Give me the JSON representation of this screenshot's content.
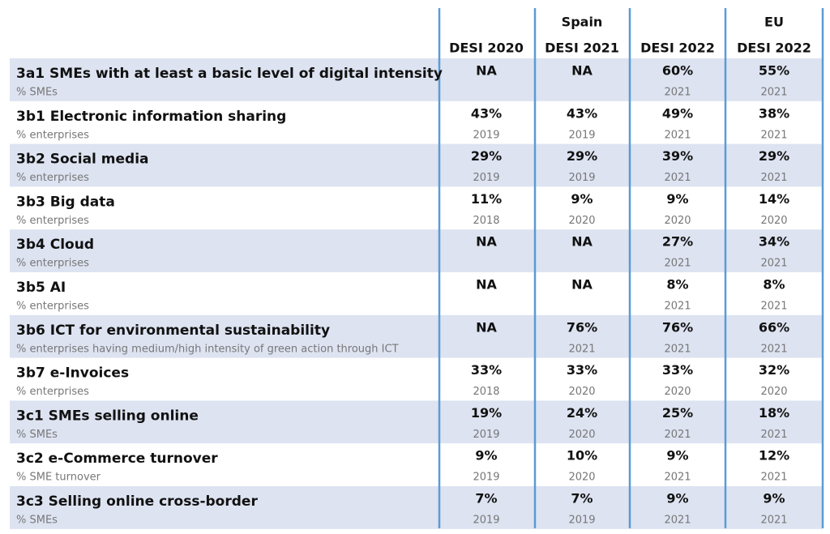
{
  "header": {
    "group_spain": "Spain",
    "group_eu": "EU",
    "columns": [
      "DESI 2020",
      "DESI 2021",
      "DESI 2022",
      "DESI 2022"
    ]
  },
  "rows": [
    {
      "label": "3a1 SMEs with at least a basic level of digital intensity",
      "unit": "% SMEs",
      "cells": [
        {
          "value": "NA",
          "year": null
        },
        {
          "value": "NA",
          "year": null
        },
        {
          "value": "60%",
          "year": "2021"
        },
        {
          "value": "55%",
          "year": "2021"
        }
      ]
    },
    {
      "label": "3b1 Electronic information sharing",
      "unit": "% enterprises",
      "cells": [
        {
          "value": "43%",
          "year": "2019"
        },
        {
          "value": "43%",
          "year": "2019"
        },
        {
          "value": "49%",
          "year": "2021"
        },
        {
          "value": "38%",
          "year": "2021"
        }
      ]
    },
    {
      "label": "3b2 Social media",
      "unit": "% enterprises",
      "cells": [
        {
          "value": "29%",
          "year": "2019"
        },
        {
          "value": "29%",
          "year": "2019"
        },
        {
          "value": "39%",
          "year": "2021"
        },
        {
          "value": "29%",
          "year": "2021"
        }
      ]
    },
    {
      "label": "3b3 Big data",
      "unit": "% enterprises",
      "cells": [
        {
          "value": "11%",
          "year": "2018"
        },
        {
          "value": "9%",
          "year": "2020"
        },
        {
          "value": "9%",
          "year": "2020"
        },
        {
          "value": "14%",
          "year": "2020"
        }
      ]
    },
    {
      "label": "3b4 Cloud",
      "unit": "% enterprises",
      "cells": [
        {
          "value": "NA",
          "year": null
        },
        {
          "value": "NA",
          "year": null
        },
        {
          "value": "27%",
          "year": "2021"
        },
        {
          "value": "34%",
          "year": "2021"
        }
      ]
    },
    {
      "label": "3b5 AI",
      "unit": "% enterprises",
      "cells": [
        {
          "value": "NA",
          "year": null
        },
        {
          "value": "NA",
          "year": null
        },
        {
          "value": "8%",
          "year": "2021"
        },
        {
          "value": "8%",
          "year": "2021"
        }
      ]
    },
    {
      "label": "3b6 ICT for environmental sustainability",
      "unit": "% enterprises having medium/high intensity of green action through ICT",
      "cells": [
        {
          "value": "NA",
          "year": null
        },
        {
          "value": "76%",
          "year": "2021"
        },
        {
          "value": "76%",
          "year": "2021"
        },
        {
          "value": "66%",
          "year": "2021"
        }
      ]
    },
    {
      "label": "3b7 e-Invoices",
      "unit": "% enterprises",
      "cells": [
        {
          "value": "33%",
          "year": "2018"
        },
        {
          "value": "33%",
          "year": "2020"
        },
        {
          "value": "33%",
          "year": "2020"
        },
        {
          "value": "32%",
          "year": "2020"
        }
      ]
    },
    {
      "label": "3c1 SMEs selling online",
      "unit": "% SMEs",
      "cells": [
        {
          "value": "19%",
          "year": "2019"
        },
        {
          "value": "24%",
          "year": "2020"
        },
        {
          "value": "25%",
          "year": "2021"
        },
        {
          "value": "18%",
          "year": "2021"
        }
      ]
    },
    {
      "label": "3c2 e-Commerce turnover",
      "unit": "% SME turnover",
      "cells": [
        {
          "value": "9%",
          "year": "2019"
        },
        {
          "value": "10%",
          "year": "2020"
        },
        {
          "value": "9%",
          "year": "2021"
        },
        {
          "value": "12%",
          "year": "2021"
        }
      ]
    },
    {
      "label": "3c3 Selling online cross-border",
      "unit": "% SMEs",
      "cells": [
        {
          "value": "7%",
          "year": "2019"
        },
        {
          "value": "7%",
          "year": "2019"
        },
        {
          "value": "9%",
          "year": "2021"
        },
        {
          "value": "9%",
          "year": "2021"
        }
      ]
    }
  ]
}
